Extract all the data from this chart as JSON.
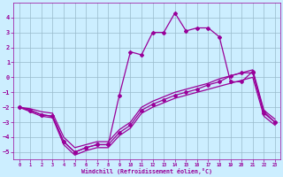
{
  "x": [
    0,
    1,
    2,
    3,
    4,
    5,
    6,
    7,
    8,
    9,
    10,
    11,
    12,
    13,
    14,
    15,
    16,
    17,
    18,
    19,
    20,
    21,
    22,
    23
  ],
  "curve_upper_main": [
    -2,
    -2.2,
    -2.5,
    -2.6,
    -4.3,
    -5.0,
    -4.7,
    -4.5,
    -4.5,
    -1.2,
    1.7,
    1.5,
    3.0,
    3.0,
    4.3,
    3.1,
    3.3,
    3.3,
    2.7,
    -0.3,
    -0.3,
    0.4,
    -2.3,
    -3.0
  ],
  "curve_lower_main": [
    -2,
    -2.2,
    -2.5,
    -2.6,
    -4.3,
    -5.0,
    -4.7,
    -4.5,
    -4.5,
    -3.7,
    -3.2,
    -2.2,
    -1.8,
    -1.5,
    -1.2,
    -1.0,
    -0.8,
    -0.5,
    -0.3,
    0.1,
    0.3,
    0.3,
    -2.4,
    -3.0
  ],
  "curve_env_upper": [
    -2,
    -2.1,
    -2.3,
    -2.4,
    -4.0,
    -4.7,
    -4.5,
    -4.3,
    -4.3,
    -3.5,
    -3.0,
    -2.0,
    -1.6,
    -1.3,
    -1.0,
    -0.8,
    -0.6,
    -0.4,
    -0.1,
    0.1,
    0.3,
    0.5,
    -2.2,
    -2.8
  ],
  "curve_env_lower": [
    -2,
    -2.3,
    -2.6,
    -2.7,
    -4.5,
    -5.2,
    -4.9,
    -4.7,
    -4.7,
    -3.9,
    -3.4,
    -2.4,
    -2.0,
    -1.7,
    -1.4,
    -1.2,
    -1.0,
    -0.8,
    -0.6,
    -0.4,
    -0.2,
    0.0,
    -2.6,
    -3.2
  ],
  "xlim": [
    -0.5,
    23.5
  ],
  "ylim": [
    -5.5,
    5.0
  ],
  "yticks": [
    -5,
    -4,
    -3,
    -2,
    -1,
    0,
    1,
    2,
    3,
    4
  ],
  "xticks": [
    0,
    1,
    2,
    3,
    4,
    5,
    6,
    7,
    8,
    9,
    10,
    11,
    12,
    13,
    14,
    15,
    16,
    17,
    18,
    19,
    20,
    21,
    22,
    23
  ],
  "xlabel": "Windchill (Refroidissement éolien,°C)",
  "bg_color": "#cceeff",
  "line_color": "#990099",
  "grid_color": "#99bbcc",
  "marker": "D"
}
